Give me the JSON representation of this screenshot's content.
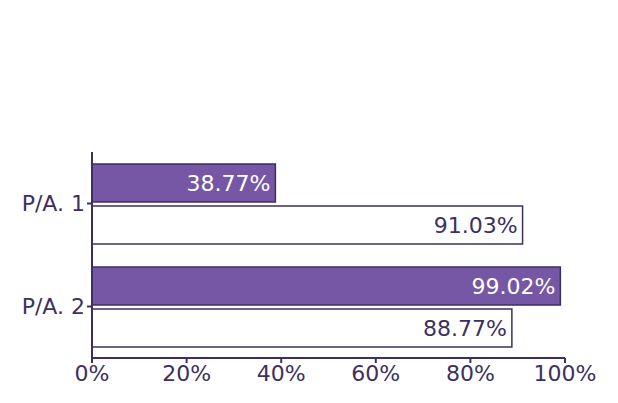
{
  "chart_data": {
    "type": "bar",
    "orientation": "horizontal",
    "categories": [
      "P/A. 1",
      "P/A. 2"
    ],
    "series": [
      {
        "color": "#7557a6",
        "values": [
          38.77,
          99.02
        ],
        "value_labels": [
          "38.77%",
          "99.02%"
        ]
      },
      {
        "color": "#ffffff",
        "values": [
          91.03,
          88.77
        ],
        "value_labels": [
          "91.03%",
          "88.77%"
        ]
      }
    ],
    "xlim": [
      0,
      100
    ],
    "xticks": [
      {
        "value": 0,
        "label": "0%"
      },
      {
        "value": 20,
        "label": "20%"
      },
      {
        "value": 40,
        "label": "40%"
      },
      {
        "value": 60,
        "label": "60%"
      },
      {
        "value": 80,
        "label": "80%"
      },
      {
        "value": 100,
        "label": "100%"
      }
    ],
    "data_labels": true,
    "grid": false
  }
}
